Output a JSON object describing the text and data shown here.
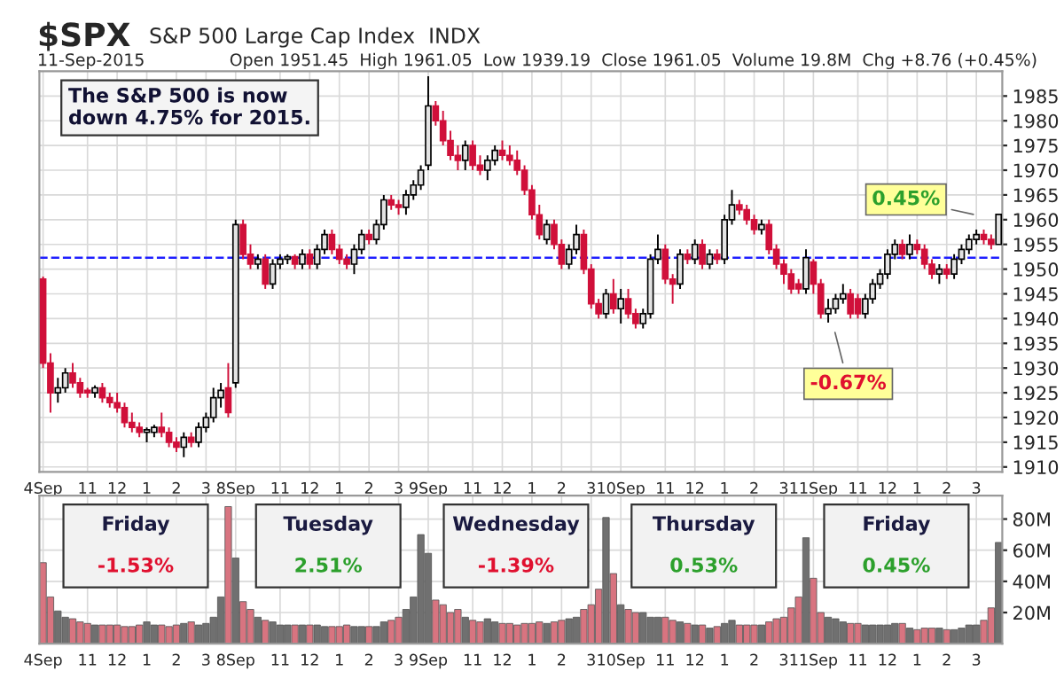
{
  "chart_data": [
    {
      "type": "candlestick",
      "title": "$SPX",
      "subtitle": "S&P 500 Large Cap Index  INDX",
      "annotations": [
        "11-Sep-2015",
        "Open 1951.45  High 1961.05  Low 1939.19  Close 1961.05  Volume 19.8M  Chg +8.76 (+0.45%)",
        "The S&P 500 is now\ndown 4.75% for 2015.",
        "0.45%",
        "-0.67%"
      ],
      "categories": [
        "4Sep",
        null,
        null,
        null,
        null,
        null,
        "11",
        null,
        null,
        null,
        "12",
        null,
        null,
        null,
        "1",
        null,
        null,
        null,
        "2",
        null,
        null,
        null,
        "3",
        null,
        null,
        null,
        "8Sep",
        null,
        null,
        null,
        null,
        null,
        "11",
        null,
        null,
        null,
        "12",
        null,
        null,
        null,
        "1",
        null,
        null,
        null,
        "2",
        null,
        null,
        null,
        "3",
        null,
        null,
        null,
        "9Sep",
        null,
        null,
        null,
        null,
        null,
        "11",
        null,
        null,
        null,
        "12",
        null,
        null,
        null,
        "1",
        null,
        null,
        null,
        "2",
        null,
        null,
        null,
        "3",
        null,
        null,
        null,
        "10Sep",
        null,
        null,
        null,
        null,
        null,
        "11",
        null,
        null,
        null,
        "12",
        null,
        null,
        null,
        "1",
        null,
        null,
        null,
        "2",
        null,
        null,
        null,
        "3",
        null,
        null,
        null,
        "11Sep",
        null,
        null,
        null,
        null,
        null,
        "11",
        null,
        null,
        null,
        "12",
        null,
        null,
        null,
        "1",
        null,
        null,
        null,
        "2",
        null,
        null,
        null,
        "3",
        null,
        null,
        null
      ],
      "ohlc": [
        [
          1948,
          1948.5,
          1930,
          1931
        ],
        [
          1931,
          1933,
          1921,
          1925
        ],
        [
          1925,
          1928,
          1923,
          1926
        ],
        [
          1926,
          1930,
          1925,
          1929
        ],
        [
          1929,
          1931,
          1926,
          1927
        ],
        [
          1927,
          1928,
          1924,
          1925
        ],
        [
          1925.5,
          1926,
          1924,
          1925
        ],
        [
          1925,
          1926.5,
          1924,
          1926
        ],
        [
          1926,
          1927,
          1923,
          1924
        ],
        [
          1924,
          1925,
          1922,
          1923
        ],
        [
          1923,
          1925,
          1921,
          1922
        ],
        [
          1922,
          1923,
          1918,
          1919
        ],
        [
          1919,
          1921,
          1917,
          1918
        ],
        [
          1918,
          1919,
          1916,
          1917
        ],
        [
          1917,
          1918,
          1915,
          1917.5
        ],
        [
          1917,
          1918.5,
          1916,
          1918
        ],
        [
          1918,
          1921,
          1916,
          1917
        ],
        [
          1917,
          1918,
          1914,
          1915
        ],
        [
          1915,
          1916,
          1913,
          1914
        ],
        [
          1914,
          1917,
          1912,
          1916
        ],
        [
          1916,
          1917,
          1914,
          1915
        ],
        [
          1915,
          1919,
          1914,
          1918
        ],
        [
          1918,
          1921,
          1917,
          1920
        ],
        [
          1920,
          1926,
          1919,
          1924
        ],
        [
          1924,
          1927,
          1922,
          1925.5
        ],
        [
          1926,
          1931,
          1920,
          1921
        ],
        [
          1927,
          1960,
          1926,
          1959
        ],
        [
          1959,
          1960,
          1952,
          1953
        ],
        [
          1953,
          1955,
          1950,
          1951
        ],
        [
          1951,
          1953,
          1950,
          1952
        ],
        [
          1952,
          1953,
          1946,
          1947
        ],
        [
          1947,
          1952,
          1946,
          1951
        ],
        [
          1951,
          1953,
          1950,
          1952
        ],
        [
          1952,
          1953,
          1951,
          1952.5
        ],
        [
          1952.5,
          1953,
          1950,
          1951
        ],
        [
          1951,
          1954,
          1950,
          1953
        ],
        [
          1953,
          1954,
          1950,
          1951
        ],
        [
          1951,
          1955,
          1950,
          1954
        ],
        [
          1954,
          1958,
          1953,
          1957
        ],
        [
          1957,
          1958,
          1953,
          1954
        ],
        [
          1954,
          1955,
          1951,
          1952
        ],
        [
          1952,
          1953,
          1950,
          1951
        ],
        [
          1951,
          1955,
          1949,
          1954
        ],
        [
          1954,
          1958,
          1953,
          1957
        ],
        [
          1957,
          1958,
          1955,
          1956
        ],
        [
          1956,
          1960,
          1955,
          1959
        ],
        [
          1959,
          1965,
          1958,
          1964
        ],
        [
          1964,
          1965,
          1962,
          1963
        ],
        [
          1963,
          1964,
          1961,
          1962.5
        ],
        [
          1962.5,
          1966,
          1961,
          1965
        ],
        [
          1965,
          1968,
          1964,
          1967
        ],
        [
          1967,
          1971,
          1966,
          1970
        ],
        [
          1971,
          1989,
          1970,
          1983
        ],
        [
          1983,
          1984,
          1979,
          1980
        ],
        [
          1980,
          1982,
          1975,
          1976
        ],
        [
          1976,
          1978,
          1972,
          1973
        ],
        [
          1973,
          1975,
          1970,
          1972
        ],
        [
          1972,
          1976,
          1970,
          1975
        ],
        [
          1975,
          1976,
          1970,
          1971
        ],
        [
          1971,
          1973,
          1969,
          1970
        ],
        [
          1970,
          1973,
          1968,
          1972
        ],
        [
          1972,
          1975,
          1971,
          1974
        ],
        [
          1974,
          1976,
          1972,
          1973
        ],
        [
          1973,
          1975,
          1971,
          1972
        ],
        [
          1972,
          1974,
          1969,
          1970
        ],
        [
          1970,
          1971,
          1965,
          1966
        ],
        [
          1966,
          1967,
          1960,
          1961
        ],
        [
          1961,
          1963,
          1956,
          1957
        ],
        [
          1956,
          1960,
          1955,
          1959
        ],
        [
          1959,
          1960,
          1954,
          1955
        ],
        [
          1955,
          1956,
          1950,
          1951
        ],
        [
          1951,
          1955,
          1950,
          1954
        ],
        [
          1954,
          1959,
          1953,
          1957
        ],
        [
          1957,
          1958,
          1949,
          1950
        ],
        [
          1950,
          1951,
          1942,
          1943
        ],
        [
          1943,
          1944,
          1940,
          1941
        ],
        [
          1941,
          1946,
          1940,
          1945
        ],
        [
          1945,
          1948,
          1941,
          1942
        ],
        [
          1942,
          1946,
          1939,
          1944
        ],
        [
          1944,
          1946,
          1940,
          1941
        ],
        [
          1941,
          1942,
          1938,
          1939
        ],
        [
          1939,
          1942,
          1938,
          1941
        ],
        [
          1941,
          1953,
          1940,
          1952
        ],
        [
          1952,
          1957,
          1951,
          1954
        ],
        [
          1954,
          1955,
          1947,
          1948
        ],
        [
          1948,
          1949,
          1943,
          1947
        ],
        [
          1947,
          1954,
          1946,
          1953
        ],
        [
          1953,
          1954,
          1951,
          1952
        ],
        [
          1952,
          1956,
          1951,
          1955
        ],
        [
          1955,
          1956,
          1950,
          1951
        ],
        [
          1951,
          1954,
          1950,
          1953
        ],
        [
          1953,
          1954,
          1951,
          1952
        ],
        [
          1952,
          1961,
          1951,
          1960
        ],
        [
          1960,
          1966,
          1959,
          1963
        ],
        [
          1963,
          1964,
          1961,
          1962
        ],
        [
          1962,
          1963,
          1959,
          1960
        ],
        [
          1960,
          1961,
          1957,
          1958
        ],
        [
          1958,
          1960,
          1957,
          1959
        ],
        [
          1959,
          1960,
          1953,
          1954
        ],
        [
          1954,
          1955,
          1950,
          1951
        ],
        [
          1951,
          1952,
          1947,
          1949
        ],
        [
          1949,
          1950,
          1945,
          1946
        ],
        [
          1947,
          1948,
          1945,
          1946
        ],
        [
          1946,
          1954,
          1945,
          1952.3
        ],
        [
          1951.45,
          1952,
          1945,
          1947
        ],
        [
          1947,
          1948,
          1940,
          1941
        ],
        [
          1941,
          1944,
          1939.19,
          1942
        ],
        [
          1942,
          1945,
          1941,
          1944
        ],
        [
          1944,
          1947,
          1943,
          1945
        ],
        [
          1945,
          1946,
          1940,
          1941
        ],
        [
          1944,
          1945,
          1940,
          1941
        ],
        [
          1941,
          1945,
          1940,
          1944
        ],
        [
          1944,
          1948,
          1943,
          1947
        ],
        [
          1947,
          1950,
          1946,
          1949
        ],
        [
          1949,
          1954,
          1948,
          1953
        ],
        [
          1953,
          1956,
          1952,
          1955
        ],
        [
          1955,
          1956,
          1952,
          1953
        ],
        [
          1953,
          1957,
          1952,
          1955
        ],
        [
          1955,
          1956,
          1953,
          1954
        ],
        [
          1954,
          1955,
          1950,
          1951
        ],
        [
          1951,
          1952,
          1948,
          1949
        ],
        [
          1949,
          1951,
          1947,
          1950
        ],
        [
          1950,
          1951,
          1948,
          1949
        ],
        [
          1949,
          1953,
          1948,
          1952
        ],
        [
          1952,
          1955,
          1951,
          1954
        ],
        [
          1954,
          1957,
          1953,
          1956
        ],
        [
          1956,
          1958,
          1955,
          1957
        ],
        [
          1957,
          1958,
          1955,
          1956
        ],
        [
          1956,
          1957,
          1954,
          1955
        ],
        [
          1955,
          1961.05,
          1955,
          1961.05
        ]
      ],
      "colors": [
        "#d0103a",
        "#d0103a",
        "#e3e3e3",
        "#e3e3e3",
        "#d0103a",
        "#d0103a",
        "#d0103a",
        "#e3e3e3",
        "#d0103a",
        "#d0103a",
        "#d0103a",
        "#d0103a",
        "#d0103a",
        "#d0103a",
        "#e3e3e3",
        "#e3e3e3",
        "#d0103a",
        "#d0103a",
        "#d0103a",
        "#e3e3e3",
        "#d0103a",
        "#e3e3e3",
        "#e3e3e3",
        "#e3e3e3",
        "#e3e3e3",
        "#d0103a",
        "#e3e3e3",
        "#d0103a",
        "#d0103a",
        "#e3e3e3",
        "#d0103a",
        "#e3e3e3",
        "#e3e3e3",
        "#e3e3e3",
        "#d0103a",
        "#e3e3e3",
        "#d0103a",
        "#e3e3e3",
        "#e3e3e3",
        "#d0103a",
        "#d0103a",
        "#d0103a",
        "#e3e3e3",
        "#e3e3e3",
        "#d0103a",
        "#e3e3e3",
        "#e3e3e3",
        "#d0103a",
        "#d0103a",
        "#e3e3e3",
        "#e3e3e3",
        "#e3e3e3",
        "#e3e3e3",
        "#d0103a",
        "#d0103a",
        "#d0103a",
        "#d0103a",
        "#e3e3e3",
        "#d0103a",
        "#d0103a",
        "#e3e3e3",
        "#e3e3e3",
        "#d0103a",
        "#d0103a",
        "#d0103a",
        "#d0103a",
        "#d0103a",
        "#d0103a",
        "#e3e3e3",
        "#d0103a",
        "#d0103a",
        "#e3e3e3",
        "#e3e3e3",
        "#d0103a",
        "#d0103a",
        "#d0103a",
        "#e3e3e3",
        "#d0103a",
        "#e3e3e3",
        "#d0103a",
        "#d0103a",
        "#e3e3e3",
        "#e3e3e3",
        "#e3e3e3",
        "#d0103a",
        "#d0103a",
        "#e3e3e3",
        "#d0103a",
        "#e3e3e3",
        "#d0103a",
        "#e3e3e3",
        "#d0103a",
        "#e3e3e3",
        "#e3e3e3",
        "#d0103a",
        "#d0103a",
        "#d0103a",
        "#e3e3e3",
        "#d0103a",
        "#d0103a",
        "#d0103a",
        "#d0103a",
        "#d0103a",
        "#e3e3e3",
        "#d0103a",
        "#d0103a",
        "#e3e3e3",
        "#e3e3e3",
        "#e3e3e3",
        "#d0103a",
        "#d0103a",
        "#e3e3e3",
        "#e3e3e3",
        "#e3e3e3",
        "#e3e3e3",
        "#e3e3e3",
        "#d0103a",
        "#e3e3e3",
        "#d0103a",
        "#d0103a",
        "#d0103a",
        "#e3e3e3",
        "#d0103a",
        "#e3e3e3",
        "#e3e3e3",
        "#e3e3e3",
        "#e3e3e3",
        "#d0103a",
        "#d0103a",
        "#e3e3e3"
      ],
      "ylim": [
        1909,
        1990
      ],
      "yticks": [
        1910,
        1915,
        1920,
        1925,
        1930,
        1935,
        1940,
        1945,
        1950,
        1955,
        1960,
        1965,
        1970,
        1975,
        1980,
        1985
      ],
      "ref_lines": [
        {
          "axis": "y",
          "value": 1952.29,
          "color": "#2020ff",
          "line_style": "dashed"
        }
      ],
      "grid": true
    },
    {
      "type": "bar",
      "annotations": [
        "Friday",
        "-1.53%",
        "Tuesday",
        "2.51%",
        "Wednesday",
        "-1.39%",
        "Thursday",
        "0.53%",
        "Friday",
        "0.45%"
      ],
      "categories": [
        "4Sep",
        null,
        null,
        null,
        null,
        null,
        "11",
        null,
        null,
        null,
        "12",
        null,
        null,
        null,
        "1",
        null,
        null,
        null,
        "2",
        null,
        null,
        null,
        "3",
        null,
        null,
        null,
        "8Sep",
        null,
        null,
        null,
        null,
        null,
        "11",
        null,
        null,
        null,
        "12",
        null,
        null,
        null,
        "1",
        null,
        null,
        null,
        "2",
        null,
        null,
        null,
        "3",
        null,
        null,
        null,
        "9Sep",
        null,
        null,
        null,
        null,
        null,
        "11",
        null,
        null,
        null,
        "12",
        null,
        null,
        null,
        "1",
        null,
        null,
        null,
        "2",
        null,
        null,
        null,
        "3",
        null,
        null,
        null,
        "10Sep",
        null,
        null,
        null,
        null,
        null,
        "11",
        null,
        null,
        null,
        "12",
        null,
        null,
        null,
        "1",
        null,
        null,
        null,
        "2",
        null,
        null,
        null,
        "3",
        null,
        null,
        null,
        "11Sep",
        null,
        null,
        null,
        null,
        null,
        "11",
        null,
        null,
        null,
        "12",
        null,
        null,
        null,
        "1",
        null,
        null,
        null,
        "2",
        null,
        null,
        null,
        "3",
        null,
        null,
        null
      ],
      "values": [
        52,
        30,
        21,
        17,
        16,
        14,
        13,
        12,
        12,
        12,
        12,
        11,
        11,
        12,
        14,
        12,
        12,
        11,
        12,
        13,
        14,
        12,
        13,
        17,
        30,
        88,
        55,
        27,
        22,
        17,
        15,
        14,
        12,
        12,
        12,
        12,
        12,
        12,
        11,
        11,
        11,
        12,
        11,
        11,
        11,
        11,
        14,
        15,
        17,
        22,
        30,
        70,
        58,
        28,
        25,
        20,
        22,
        17,
        15,
        14,
        16,
        14,
        13,
        13,
        12,
        13,
        13,
        14,
        13,
        14,
        15,
        16,
        17,
        22,
        25,
        35,
        81,
        45,
        25,
        22,
        20,
        20,
        17,
        17,
        17,
        15,
        14,
        13,
        12,
        12,
        10,
        11,
        13,
        15,
        12,
        12,
        12,
        12,
        14,
        16,
        17,
        23,
        30,
        68,
        42,
        20,
        17,
        16,
        14,
        13,
        13,
        12,
        12,
        12,
        12,
        13,
        13,
        10,
        9,
        10,
        10,
        10,
        9,
        9,
        10,
        12,
        12,
        15,
        23,
        65
      ],
      "colors": [
        "#d87480",
        "#d87480",
        "#707070",
        "#707070",
        "#d87480",
        "#d87480",
        "#d87480",
        "#707070",
        "#d87480",
        "#d87480",
        "#d87480",
        "#d87480",
        "#d87480",
        "#d87480",
        "#707070",
        "#707070",
        "#d87480",
        "#d87480",
        "#d87480",
        "#707070",
        "#d87480",
        "#707070",
        "#707070",
        "#707070",
        "#707070",
        "#d87480",
        "#707070",
        "#d87480",
        "#d87480",
        "#707070",
        "#d87480",
        "#707070",
        "#707070",
        "#707070",
        "#d87480",
        "#707070",
        "#d87480",
        "#707070",
        "#707070",
        "#d87480",
        "#d87480",
        "#d87480",
        "#707070",
        "#707070",
        "#d87480",
        "#707070",
        "#707070",
        "#d87480",
        "#d87480",
        "#707070",
        "#707070",
        "#707070",
        "#707070",
        "#d87480",
        "#d87480",
        "#d87480",
        "#d87480",
        "#707070",
        "#d87480",
        "#d87480",
        "#707070",
        "#707070",
        "#d87480",
        "#d87480",
        "#d87480",
        "#d87480",
        "#d87480",
        "#d87480",
        "#707070",
        "#d87480",
        "#d87480",
        "#707070",
        "#707070",
        "#d87480",
        "#d87480",
        "#d87480",
        "#707070",
        "#d87480",
        "#707070",
        "#d87480",
        "#d87480",
        "#707070",
        "#707070",
        "#707070",
        "#d87480",
        "#d87480",
        "#707070",
        "#d87480",
        "#707070",
        "#d87480",
        "#707070",
        "#d87480",
        "#707070",
        "#707070",
        "#d87480",
        "#d87480",
        "#d87480",
        "#707070",
        "#d87480",
        "#d87480",
        "#d87480",
        "#d87480",
        "#d87480",
        "#707070",
        "#d87480",
        "#d87480",
        "#707070",
        "#707070",
        "#707070",
        "#d87480",
        "#d87480",
        "#707070",
        "#707070",
        "#707070",
        "#707070",
        "#707070",
        "#d87480",
        "#707070",
        "#d87480",
        "#d87480",
        "#d87480",
        "#707070",
        "#d87480",
        "#707070",
        "#707070",
        "#707070",
        "#707070",
        "#d87480",
        "#d87480",
        "#707070"
      ],
      "ylim": [
        0,
        95
      ],
      "yticks": [
        {
          "value": 20,
          "label": "20M"
        },
        {
          "value": 40,
          "label": "40M"
        },
        {
          "value": 60,
          "label": "60M"
        },
        {
          "value": 80,
          "label": "80M"
        }
      ],
      "grid": true
    }
  ]
}
